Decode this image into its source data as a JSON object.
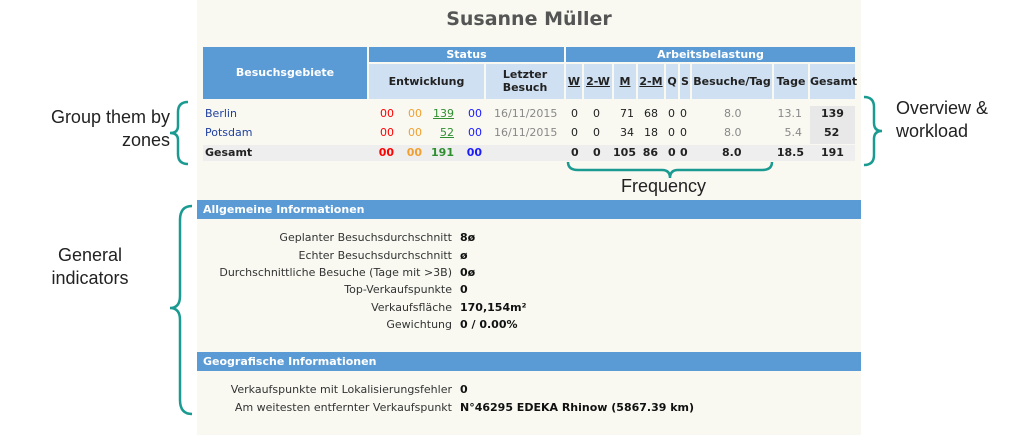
{
  "person_name": "Susanne Müller",
  "table": {
    "col_area": "Besuchsgebiete",
    "col_status": "Status",
    "col_workload": "Arbeitsbelastung",
    "col_entwicklung": "Entwicklung",
    "col_letzter": "Letzter Besuch",
    "freq_cols": [
      "W",
      "2-W",
      "M",
      "2-M",
      "Q",
      "S"
    ],
    "col_besuche_tag": "Besuche/Tag",
    "col_tage": "Tage",
    "col_gesamt": "Gesamt",
    "rows": [
      {
        "zone": "Berlin",
        "e1": "00",
        "e2": "00",
        "e3": "139",
        "e4": "00",
        "last": "16/11/2015",
        "w": "0",
        "w2": "0",
        "m": "71",
        "m2": "68",
        "q": "0",
        "s": "0",
        "bt": "8.0",
        "tage": "13.1",
        "gesamt": "139"
      },
      {
        "zone": "Potsdam",
        "e1": "00",
        "e2": "00",
        "e3": "52",
        "e4": "00",
        "last": "16/11/2015",
        "w": "0",
        "w2": "0",
        "m": "34",
        "m2": "18",
        "q": "0",
        "s": "0",
        "bt": "8.0",
        "tage": "5.4",
        "gesamt": "52"
      },
      {
        "zone": "Gesamt",
        "e1": "00",
        "e2": "00",
        "e3": "191",
        "e4": "00",
        "last": "",
        "w": "0",
        "w2": "0",
        "m": "105",
        "m2": "86",
        "q": "0",
        "s": "0",
        "bt": "8.0",
        "tage": "18.5",
        "gesamt": "191"
      }
    ]
  },
  "general": {
    "header": "Allgemeine Informationen",
    "items": [
      {
        "label": "Geplanter Besuchsdurchschnitt",
        "value": "8ø"
      },
      {
        "label": "Echter Besuchsdurchschnitt",
        "value": "ø"
      },
      {
        "label": "Durchschnittliche Besuche (Tage mit >3B)",
        "value": "0ø"
      },
      {
        "label": "Top-Verkaufspunkte",
        "value": "0"
      },
      {
        "label": "Verkaufsfläche",
        "value": "170,154m²"
      },
      {
        "label": "Gewichtung",
        "value": "0 / 0.00%"
      }
    ]
  },
  "geo": {
    "header": "Geografische Informationen",
    "items": [
      {
        "label": "Verkaufspunkte mit Lokalisierungsfehler",
        "value": "0"
      },
      {
        "label": "Am weitesten entfernter Verkaufspunkt",
        "value": "N°46295 EDEKA Rhinow (5867.39 km)"
      }
    ]
  },
  "annotations": {
    "zones": "Group them by\nzones",
    "overview": "Overview &\nworkload",
    "frequency": "Frequency",
    "general": "General\nindicators"
  },
  "colors": {
    "header_blue": "#5b9bd5",
    "subheader_blue": "#cfe0f2",
    "brace_teal": "#1a9a90"
  }
}
